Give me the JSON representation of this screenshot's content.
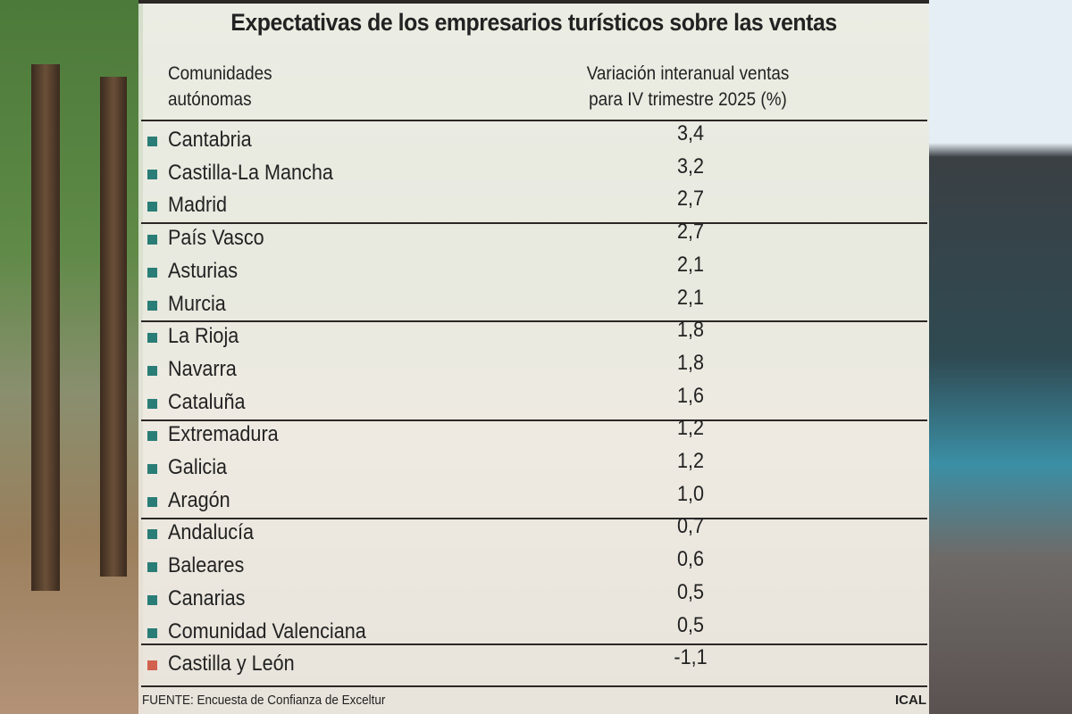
{
  "chart_data": {
    "type": "table",
    "title": "Expectativas de los empresarios turísticos sobre las ventas",
    "columns": [
      "Comunidades autónomas",
      "Variación interanual ventas para IV trimestre 2025 (%)"
    ],
    "column_lines": [
      [
        "Comunidades",
        "autónomas"
      ],
      [
        "Variación interanual ventas",
        "para IV trimestre 2025 (%)"
      ]
    ],
    "rows": [
      {
        "name": "Cantabria",
        "value": "3,4"
      },
      {
        "name": "Castilla-La Mancha",
        "value": "3,2"
      },
      {
        "name": "Madrid",
        "value": "2,7"
      },
      {
        "name": "País Vasco",
        "value": "2,7"
      },
      {
        "name": "Asturias",
        "value": "2,1"
      },
      {
        "name": "Murcia",
        "value": "2,1"
      },
      {
        "name": "La Rioja",
        "value": "1,8"
      },
      {
        "name": "Navarra",
        "value": "1,8"
      },
      {
        "name": "Cataluña",
        "value": "1,6"
      },
      {
        "name": "Extremadura",
        "value": "1,2"
      },
      {
        "name": "Galicia",
        "value": "1,2"
      },
      {
        "name": "Aragón",
        "value": "1,0"
      },
      {
        "name": "Andalucía",
        "value": "0,7"
      },
      {
        "name": "Baleares",
        "value": "0,6"
      },
      {
        "name": "Canarias",
        "value": "0,5"
      },
      {
        "name": "Comunidad Valenciana",
        "value": "0,5"
      },
      {
        "name": "Castilla y León",
        "value": "-1,1",
        "highlight": true
      }
    ],
    "colors": {
      "default": "#2a7d76",
      "highlight": "#d2604e"
    }
  },
  "source": "FUENTE: Encuesta de Confianza de Exceltur",
  "credit": "ICAL"
}
